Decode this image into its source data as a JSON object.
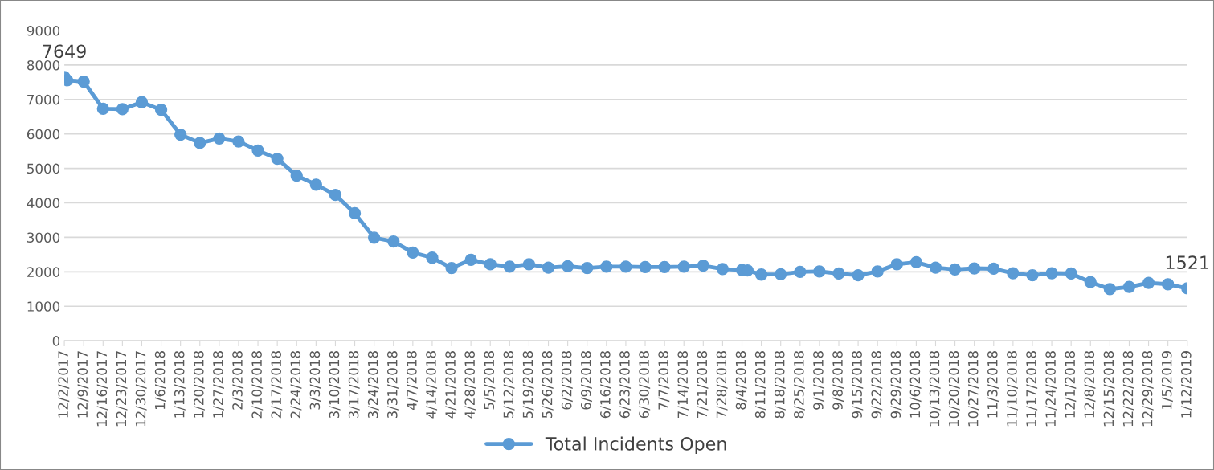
{
  "chart_data": {
    "type": "line",
    "x": [
      "2017-12-02",
      "2017-12-03",
      "2017-12-09",
      "2017-12-16",
      "2017-12-23",
      "2017-12-30",
      "2018-01-06",
      "2018-01-13",
      "2018-01-20",
      "2018-01-27",
      "2018-02-03",
      "2018-02-10",
      "2018-02-17",
      "2018-02-24",
      "2018-03-03",
      "2018-03-10",
      "2018-03-17",
      "2018-03-24",
      "2018-03-31",
      "2018-04-07",
      "2018-04-14",
      "2018-04-21",
      "2018-04-28",
      "2018-05-05",
      "2018-05-12",
      "2018-05-19",
      "2018-05-26",
      "2018-06-02",
      "2018-06-09",
      "2018-06-16",
      "2018-06-23",
      "2018-06-30",
      "2018-07-07",
      "2018-07-14",
      "2018-07-21",
      "2018-07-28",
      "2018-08-04",
      "2018-08-06",
      "2018-08-11",
      "2018-08-18",
      "2018-08-25",
      "2018-09-01",
      "2018-09-08",
      "2018-09-15",
      "2018-09-22",
      "2018-09-29",
      "2018-10-06",
      "2018-10-13",
      "2018-10-20",
      "2018-10-27",
      "2018-11-03",
      "2018-11-10",
      "2018-11-17",
      "2018-11-24",
      "2018-12-01",
      "2018-12-08",
      "2018-12-15",
      "2018-12-22",
      "2018-12-29",
      "2019-01-05",
      "2019-01-12"
    ],
    "series": [
      {
        "name": "Total Incidents Open",
        "color": "#5b9bd5",
        "values": [
          7649,
          7560,
          7520,
          6730,
          6720,
          6920,
          6700,
          5980,
          5740,
          5870,
          5780,
          5520,
          5280,
          4790,
          4530,
          4230,
          3700,
          2990,
          2880,
          2560,
          2410,
          2110,
          2350,
          2220,
          2150,
          2220,
          2120,
          2160,
          2110,
          2150,
          2150,
          2140,
          2140,
          2150,
          2180,
          2080,
          2050,
          2040,
          1920,
          1930,
          2000,
          2010,
          1950,
          1900,
          2010,
          2220,
          2280,
          2120,
          2070,
          2100,
          2090,
          1960,
          1900,
          1960,
          1950,
          1700,
          1500,
          1560,
          1680,
          1640,
          1521
        ],
        "value_labels": [
          "7649",
          null,
          null,
          null,
          null,
          null,
          null,
          null,
          null,
          null,
          null,
          null,
          null,
          null,
          null,
          null,
          null,
          null,
          null,
          null,
          null,
          null,
          null,
          null,
          null,
          null,
          null,
          null,
          null,
          null,
          null,
          null,
          null,
          null,
          null,
          null,
          null,
          null,
          null,
          null,
          null,
          null,
          null,
          null,
          null,
          null,
          null,
          null,
          null,
          null,
          null,
          null,
          null,
          null,
          null,
          null,
          null,
          null,
          null,
          null,
          "1521"
        ]
      }
    ],
    "ylim": [
      0,
      9000
    ],
    "yticks": [
      0,
      1000,
      2000,
      3000,
      4000,
      5000,
      6000,
      7000,
      8000,
      9000
    ],
    "xlim": [
      "2017-12-02",
      "2019-01-12"
    ],
    "xticks": [
      {
        "value": "2017-12-02",
        "label": "12/2/2017"
      },
      {
        "value": "2017-12-09",
        "label": "12/9/2017"
      },
      {
        "value": "2017-12-16",
        "label": "12/16/2017"
      },
      {
        "value": "2017-12-23",
        "label": "12/23/2017"
      },
      {
        "value": "2017-12-30",
        "label": "12/30/2017"
      },
      {
        "value": "2018-01-06",
        "label": "1/6/2018"
      },
      {
        "value": "2018-01-13",
        "label": "1/13/2018"
      },
      {
        "value": "2018-01-20",
        "label": "1/20/2018"
      },
      {
        "value": "2018-01-27",
        "label": "1/27/2018"
      },
      {
        "value": "2018-02-03",
        "label": "2/3/2018"
      },
      {
        "value": "2018-02-10",
        "label": "2/10/2018"
      },
      {
        "value": "2018-02-17",
        "label": "2/17/2018"
      },
      {
        "value": "2018-02-24",
        "label": "2/24/2018"
      },
      {
        "value": "2018-03-03",
        "label": "3/3/2018"
      },
      {
        "value": "2018-03-10",
        "label": "3/10/2018"
      },
      {
        "value": "2018-03-17",
        "label": "3/17/2018"
      },
      {
        "value": "2018-03-24",
        "label": "3/24/2018"
      },
      {
        "value": "2018-03-31",
        "label": "3/31/2018"
      },
      {
        "value": "2018-04-07",
        "label": "4/7/2018"
      },
      {
        "value": "2018-04-14",
        "label": "4/14/2018"
      },
      {
        "value": "2018-04-21",
        "label": "4/21/2018"
      },
      {
        "value": "2018-04-28",
        "label": "4/28/2018"
      },
      {
        "value": "2018-05-05",
        "label": "5/5/2018"
      },
      {
        "value": "2018-05-12",
        "label": "5/12/2018"
      },
      {
        "value": "2018-05-19",
        "label": "5/19/2018"
      },
      {
        "value": "2018-05-26",
        "label": "5/26/2018"
      },
      {
        "value": "2018-06-02",
        "label": "6/2/2018"
      },
      {
        "value": "2018-06-09",
        "label": "6/9/2018"
      },
      {
        "value": "2018-06-16",
        "label": "6/16/2018"
      },
      {
        "value": "2018-06-23",
        "label": "6/23/2018"
      },
      {
        "value": "2018-06-30",
        "label": "6/30/2018"
      },
      {
        "value": "2018-07-07",
        "label": "7/7/2018"
      },
      {
        "value": "2018-07-14",
        "label": "7/14/2018"
      },
      {
        "value": "2018-07-21",
        "label": "7/21/2018"
      },
      {
        "value": "2018-07-28",
        "label": "7/28/2018"
      },
      {
        "value": "2018-08-04",
        "label": "8/4/2018"
      },
      {
        "value": "2018-08-11",
        "label": "8/11/2018"
      },
      {
        "value": "2018-08-18",
        "label": "8/18/2018"
      },
      {
        "value": "2018-08-25",
        "label": "8/25/2018"
      },
      {
        "value": "2018-09-01",
        "label": "9/1/2018"
      },
      {
        "value": "2018-09-08",
        "label": "9/8/2018"
      },
      {
        "value": "2018-09-15",
        "label": "9/15/2018"
      },
      {
        "value": "2018-09-22",
        "label": "9/22/2018"
      },
      {
        "value": "2018-09-29",
        "label": "9/29/2018"
      },
      {
        "value": "2018-10-06",
        "label": "10/6/2018"
      },
      {
        "value": "2018-10-13",
        "label": "10/13/2018"
      },
      {
        "value": "2018-10-20",
        "label": "10/20/2018"
      },
      {
        "value": "2018-10-27",
        "label": "10/27/2018"
      },
      {
        "value": "2018-11-03",
        "label": "11/3/2018"
      },
      {
        "value": "2018-11-10",
        "label": "11/10/2018"
      },
      {
        "value": "2018-11-17",
        "label": "11/17/2018"
      },
      {
        "value": "2018-11-24",
        "label": "11/24/2018"
      },
      {
        "value": "2018-12-01",
        "label": "12/1/2018"
      },
      {
        "value": "2018-12-08",
        "label": "12/8/2018"
      },
      {
        "value": "2018-12-15",
        "label": "12/15/2018"
      },
      {
        "value": "2018-12-22",
        "label": "12/22/2018"
      },
      {
        "value": "2018-12-29",
        "label": "12/29/2018"
      },
      {
        "value": "2019-01-05",
        "label": "1/5/2019"
      },
      {
        "value": "2019-01-12",
        "label": "1/12/2019"
      }
    ],
    "grid": "y",
    "legend": "bottom",
    "marker": "circle",
    "line_style": "solid"
  }
}
